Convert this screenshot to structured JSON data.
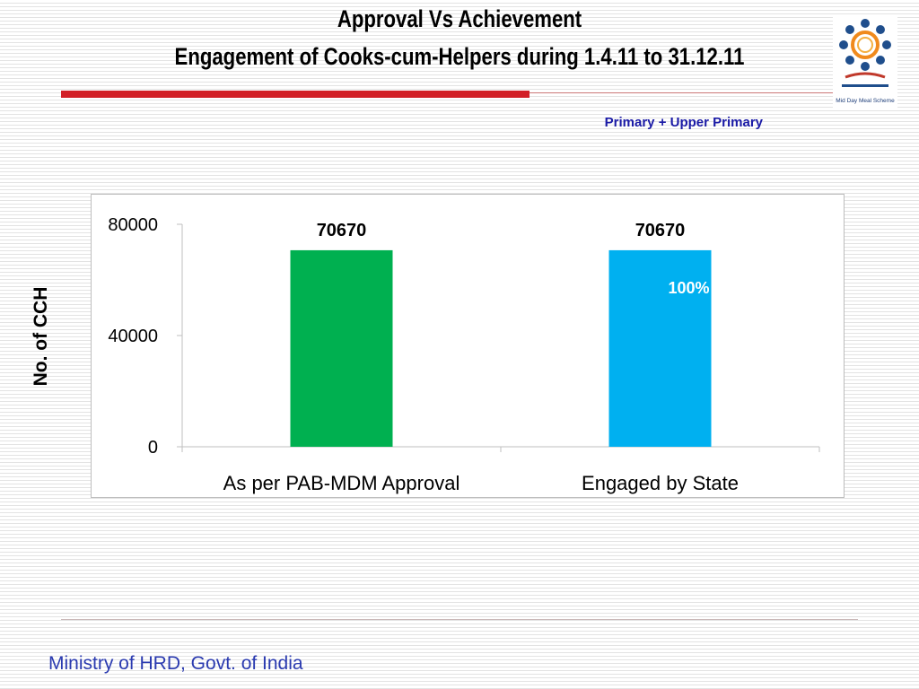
{
  "slide": {
    "title_line1": "Approval Vs Achievement",
    "title_line2": "Engagement  of Cooks-cum-Helpers  during 1.4.11 to 31.12.11",
    "subtitle": "Primary + Upper Primary",
    "footer": "Ministry of HRD, Govt. of India",
    "logo_label": "Mid Day Meal Scheme",
    "accent_red": "#d21f26",
    "footer_color": "#2a3ab0",
    "subtitle_color": "#1a1aa6"
  },
  "chart_data": {
    "type": "bar",
    "categories": [
      "As per PAB-MDM Approval",
      "Engaged by State"
    ],
    "values": [
      70670,
      70670
    ],
    "data_labels": [
      "70670",
      "70670"
    ],
    "bar_colors": [
      "#00b050",
      "#00b0f0"
    ],
    "annotation": "100%",
    "ylabel": "No. of CCH",
    "xlabel": "",
    "ylim": [
      0,
      80000
    ],
    "yticks": [
      0,
      40000,
      80000
    ],
    "ytick_labels": [
      "0",
      "40000",
      "80000"
    ],
    "grid": false,
    "legend": "none"
  }
}
